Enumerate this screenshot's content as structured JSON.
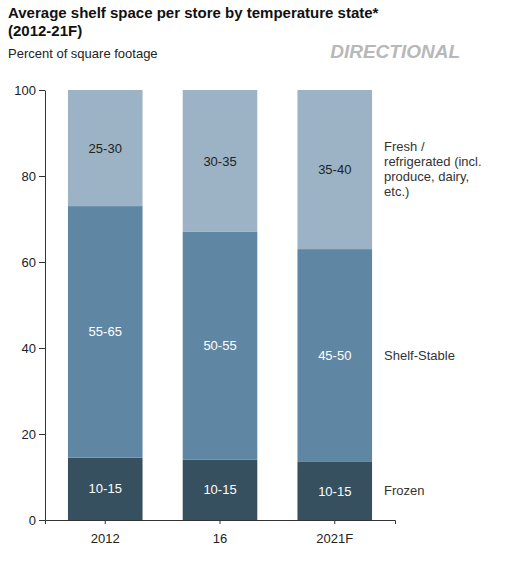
{
  "chart_data": {
    "type": "bar",
    "title": "Average shelf space per store by temperature state* (2012-21F)",
    "subtitle": "Percent of square footage",
    "annotation": "DIRECTIONAL",
    "categories": [
      "2012",
      "16",
      "2021F"
    ],
    "stacked": true,
    "data_labels": true,
    "ylim": [
      0,
      100
    ],
    "yticks": [
      0,
      20,
      40,
      60,
      80,
      100
    ],
    "grid": false,
    "series": [
      {
        "name": "Frozen",
        "color": "#36505f",
        "values": [
          14.5,
          14,
          13.5
        ],
        "value_labels": [
          "10-15",
          "10-15",
          "10-15"
        ]
      },
      {
        "name": "Shelf-Stable",
        "color": "#5f87a3",
        "values": [
          58.5,
          53,
          49.5
        ],
        "value_labels": [
          "55-65",
          "50-55",
          "45-50"
        ]
      },
      {
        "name": "Fresh / refrigerated (incl. produce, dairy, etc.)",
        "color": "#9bb3c4",
        "values": [
          27,
          33,
          37
        ],
        "value_labels": [
          "25-30",
          "30-35",
          "35-40"
        ]
      }
    ]
  }
}
